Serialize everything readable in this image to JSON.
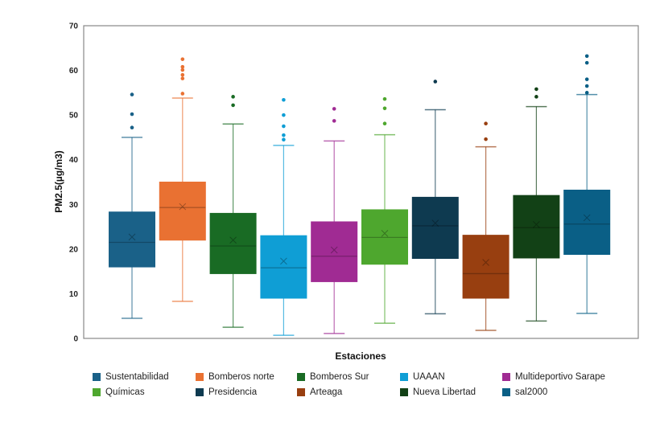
{
  "chart_data": {
    "type": "boxplot",
    "title": "",
    "xlabel": "Estaciones",
    "ylabel": "PM2.5(µg/m3)",
    "ylim": [
      0,
      70
    ],
    "yticks": [
      0,
      10,
      20,
      30,
      40,
      50,
      60,
      70
    ],
    "grid": false,
    "legend_position": "bottom",
    "series": [
      {
        "name": "Sustentabilidad",
        "color": "#1a6188",
        "min": 4.5,
        "q1": 16,
        "median": 21.5,
        "mean": 22.7,
        "q3": 28.3,
        "max": 45,
        "outliers": [
          47.2,
          50.2,
          54.6
        ]
      },
      {
        "name": "Bomberos norte",
        "color": "#e97132",
        "min": 8.3,
        "q1": 22,
        "median": 29.3,
        "mean": 29.5,
        "q3": 35,
        "max": 53.8,
        "outliers": [
          54.8,
          58.2,
          59,
          60.1,
          60.8,
          62.5
        ]
      },
      {
        "name": "Bomberos Sur",
        "color": "#196b24",
        "min": 2.5,
        "q1": 14.5,
        "median": 20.7,
        "mean": 22,
        "q3": 28,
        "max": 48,
        "outliers": [
          52.2,
          54.1
        ]
      },
      {
        "name": "UAAAN",
        "color": "#0f9ed5",
        "min": 0.7,
        "q1": 9,
        "median": 15.8,
        "mean": 17.3,
        "q3": 23,
        "max": 43.2,
        "outliers": [
          44.5,
          45.5,
          47.5,
          50,
          53.4
        ]
      },
      {
        "name": "Multideportivo Sarape",
        "color": "#a02b93",
        "min": 1.1,
        "q1": 12.7,
        "median": 18.4,
        "mean": 19.8,
        "q3": 26.1,
        "max": 44.2,
        "outliers": [
          48.7,
          51.4
        ]
      },
      {
        "name": "Químicas",
        "color": "#4ea72e",
        "min": 3.4,
        "q1": 16.6,
        "median": 22.6,
        "mean": 23.5,
        "q3": 28.8,
        "max": 45.6,
        "outliers": [
          48.1,
          51.5,
          53.6
        ]
      },
      {
        "name": "Presidencia",
        "color": "#0e3a50",
        "min": 5.5,
        "q1": 17.9,
        "median": 25.2,
        "mean": 25.8,
        "q3": 31.6,
        "max": 51.2,
        "outliers": [
          57.5
        ]
      },
      {
        "name": "Arteaga",
        "color": "#983f10",
        "min": 1.8,
        "q1": 9,
        "median": 14.5,
        "mean": 17,
        "q3": 23.1,
        "max": 42.9,
        "outliers": [
          44.6,
          48.1
        ]
      },
      {
        "name": "Nueva Libertad",
        "color": "#124116",
        "min": 3.9,
        "q1": 18,
        "median": 24.8,
        "mean": 25.5,
        "q3": 32,
        "max": 51.9,
        "outliers": [
          54.1,
          55.8
        ]
      },
      {
        "name": "sal2000",
        "color": "#0a5f86",
        "min": 5.6,
        "q1": 18.8,
        "median": 25.6,
        "mean": 27,
        "q3": 33.2,
        "max": 54.6,
        "outliers": [
          55,
          56.5,
          58,
          61.7,
          63.2
        ]
      }
    ]
  }
}
